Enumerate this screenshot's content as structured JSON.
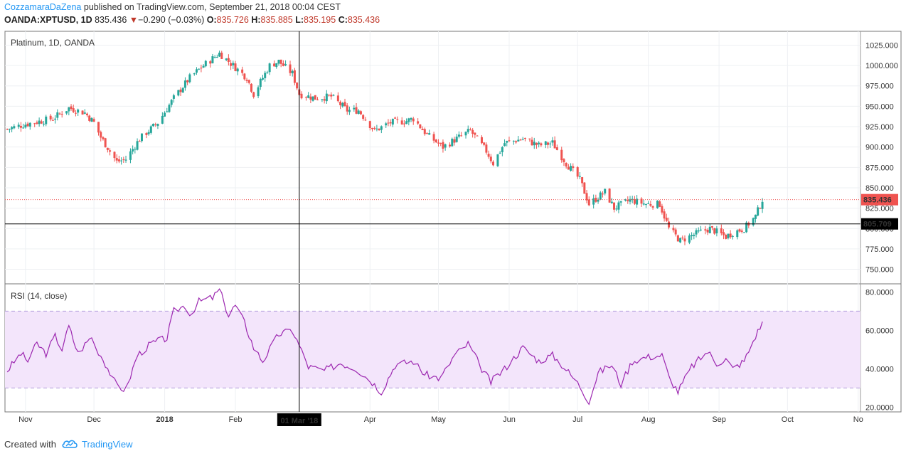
{
  "header": {
    "author": "CozzamaraDaZena",
    "published_text": " published on TradingView.com, September 21, 2018 00:04 CEST",
    "symbol": "OANDA:XPTUSD, 1D",
    "last": "835.436",
    "change": "−0.290 (−0.03%)",
    "o_label": "O:",
    "o": "835.726",
    "h_label": "H:",
    "h": "835.885",
    "l_label": "L:",
    "l": "835.195",
    "c_label": "C:",
    "c": "835.436"
  },
  "footer": {
    "created_with": "Created with",
    "brand": "TradingView"
  },
  "colors": {
    "up": "#26a69a",
    "down": "#ef5350",
    "rsi": "#9c27b0",
    "rsi_band": "#f3e5fb",
    "price_line": "#ef5350",
    "crosshair": "#000000"
  },
  "chart_data": [
    {
      "type": "candlestick",
      "title": "Platinum, 1D, OANDA",
      "y_ticks": [
        "1025.000",
        "1000.000",
        "975.000",
        "950.000",
        "925.000",
        "900.000",
        "875.000",
        "850.000",
        "825.000",
        "800.000",
        "775.000",
        "750.000"
      ],
      "ylim": [
        740,
        1035
      ],
      "x_ticks": [
        "Nov",
        "Dec",
        "2018",
        "Feb",
        "Mar",
        "Apr",
        "May",
        "Jun",
        "Jul",
        "Aug",
        "Sep",
        "Oct",
        "No"
      ],
      "last_price_label": "835.436",
      "crosshair_price_label": "805.709",
      "crosshair_price": 805.709,
      "crosshair_date_label": "01 Mar '18",
      "anchors": [
        [
          "2017-10-24",
          922
        ],
        [
          "2017-11-01",
          928
        ],
        [
          "2017-11-13",
          935
        ],
        [
          "2017-11-20",
          948
        ],
        [
          "2017-11-27",
          942
        ],
        [
          "2017-12-01",
          930
        ],
        [
          "2017-12-04",
          912
        ],
        [
          "2017-12-11",
          882
        ],
        [
          "2017-12-15",
          885
        ],
        [
          "2017-12-21",
          910
        ],
        [
          "2017-12-29",
          930
        ],
        [
          "2018-01-05",
          960
        ],
        [
          "2018-01-12",
          985
        ],
        [
          "2018-01-18",
          1000
        ],
        [
          "2018-01-25",
          1015
        ],
        [
          "2018-01-29",
          1005
        ],
        [
          "2018-02-06",
          985
        ],
        [
          "2018-02-09",
          965
        ],
        [
          "2018-02-16",
          1000
        ],
        [
          "2018-02-20",
          1005
        ],
        [
          "2018-02-26",
          990
        ],
        [
          "2018-03-01",
          965
        ],
        [
          "2018-03-08",
          960
        ],
        [
          "2018-03-15",
          962
        ],
        [
          "2018-03-22",
          945
        ],
        [
          "2018-03-27",
          945
        ],
        [
          "2018-04-03",
          920
        ],
        [
          "2018-04-10",
          930
        ],
        [
          "2018-04-17",
          932
        ],
        [
          "2018-04-20",
          935
        ],
        [
          "2018-04-26",
          915
        ],
        [
          "2018-05-03",
          900
        ],
        [
          "2018-05-10",
          912
        ],
        [
          "2018-05-15",
          920
        ],
        [
          "2018-05-22",
          895
        ],
        [
          "2018-05-25",
          880
        ],
        [
          "2018-05-30",
          905
        ],
        [
          "2018-06-07",
          910
        ],
        [
          "2018-06-14",
          902
        ],
        [
          "2018-06-20",
          905
        ],
        [
          "2018-06-26",
          880
        ],
        [
          "2018-07-02",
          860
        ],
        [
          "2018-07-06",
          830
        ],
        [
          "2018-07-13",
          845
        ],
        [
          "2018-07-17",
          825
        ],
        [
          "2018-07-24",
          835
        ],
        [
          "2018-07-31",
          830
        ],
        [
          "2018-08-06",
          830
        ],
        [
          "2018-08-10",
          800
        ],
        [
          "2018-08-15",
          785
        ],
        [
          "2018-08-23",
          795
        ],
        [
          "2018-08-28",
          800
        ],
        [
          "2018-09-04",
          790
        ],
        [
          "2018-09-07",
          795
        ],
        [
          "2018-09-12",
          800
        ],
        [
          "2018-09-17",
          815
        ],
        [
          "2018-09-20",
          835.436
        ]
      ]
    },
    {
      "type": "line",
      "title": "RSI (14, close)",
      "y_ticks": [
        "80.0000",
        "60.0000",
        "40.0000",
        "20.0000"
      ],
      "ylim": [
        19,
        82
      ],
      "band": [
        30,
        70
      ],
      "anchors": [
        [
          "2017-10-24",
          39
        ],
        [
          "2017-10-30",
          48
        ],
        [
          "2017-11-02",
          44
        ],
        [
          "2017-11-06",
          53
        ],
        [
          "2017-11-10",
          48
        ],
        [
          "2017-11-14",
          57
        ],
        [
          "2017-11-17",
          50
        ],
        [
          "2017-11-20",
          62
        ],
        [
          "2017-11-24",
          48
        ],
        [
          "2017-11-30",
          57
        ],
        [
          "2017-12-01",
          53
        ],
        [
          "2017-12-05",
          45
        ],
        [
          "2017-12-11",
          31
        ],
        [
          "2017-12-15",
          29
        ],
        [
          "2017-12-20",
          47
        ],
        [
          "2017-12-26",
          53
        ],
        [
          "2018-01-02",
          56
        ],
        [
          "2018-01-05",
          70
        ],
        [
          "2018-01-10",
          73
        ],
        [
          "2018-01-12",
          68
        ],
        [
          "2018-01-16",
          75
        ],
        [
          "2018-01-22",
          77
        ],
        [
          "2018-01-25",
          81
        ],
        [
          "2018-01-29",
          68
        ],
        [
          "2018-02-01",
          73
        ],
        [
          "2018-02-05",
          64
        ],
        [
          "2018-02-09",
          51
        ],
        [
          "2018-02-13",
          44
        ],
        [
          "2018-02-16",
          50
        ],
        [
          "2018-02-20",
          58
        ],
        [
          "2018-02-26",
          60
        ],
        [
          "2018-03-01",
          52
        ],
        [
          "2018-03-05",
          41
        ],
        [
          "2018-03-12",
          39
        ],
        [
          "2018-03-19",
          43
        ],
        [
          "2018-03-26",
          40
        ],
        [
          "2018-04-02",
          33
        ],
        [
          "2018-04-06",
          28
        ],
        [
          "2018-04-12",
          42
        ],
        [
          "2018-04-20",
          44
        ],
        [
          "2018-04-25",
          37
        ],
        [
          "2018-05-02",
          35
        ],
        [
          "2018-05-08",
          47
        ],
        [
          "2018-05-14",
          53
        ],
        [
          "2018-05-20",
          40
        ],
        [
          "2018-05-24",
          33
        ],
        [
          "2018-05-30",
          40
        ],
        [
          "2018-06-07",
          51
        ],
        [
          "2018-06-14",
          44
        ],
        [
          "2018-06-20",
          47
        ],
        [
          "2018-06-25",
          41
        ],
        [
          "2018-07-02",
          31
        ],
        [
          "2018-07-06",
          23
        ],
        [
          "2018-07-10",
          38
        ],
        [
          "2018-07-16",
          42
        ],
        [
          "2018-07-20",
          32
        ],
        [
          "2018-07-25",
          44
        ],
        [
          "2018-07-31",
          46
        ],
        [
          "2018-08-07",
          47
        ],
        [
          "2018-08-10",
          36
        ],
        [
          "2018-08-14",
          28
        ],
        [
          "2018-08-20",
          41
        ],
        [
          "2018-08-27",
          49
        ],
        [
          "2018-08-31",
          43
        ],
        [
          "2018-09-04",
          45
        ],
        [
          "2018-09-07",
          40
        ],
        [
          "2018-09-12",
          44
        ],
        [
          "2018-09-17",
          57
        ],
        [
          "2018-09-20",
          64
        ]
      ]
    }
  ]
}
